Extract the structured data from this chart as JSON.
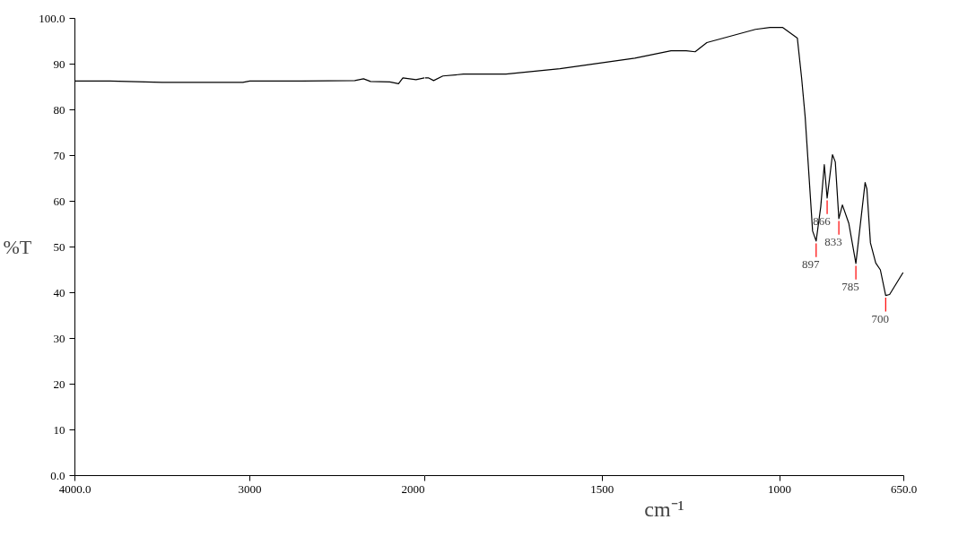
{
  "chart_data": [
    {
      "type": "line",
      "ylabel": "%T",
      "x": [
        4000,
        3800,
        3600,
        3500,
        3300,
        3040,
        3000,
        2700,
        2400,
        2350,
        2310,
        2200,
        2150,
        2125,
        2050,
        2000
      ],
      "series": [
        {
          "color": "#000000",
          "values": [
            86.3,
            86.3,
            86.1,
            86.0,
            86.0,
            86.0,
            86.3,
            86.3,
            86.4,
            86.8,
            86.2,
            86.1,
            85.7,
            87.0,
            86.6,
            87.0
          ]
        }
      ],
      "xlim": [
        4000,
        2000
      ],
      "ylim": [
        0,
        100
      ],
      "xticks": [
        {
          "value": 4000,
          "label": "4000.0"
        },
        3000,
        2000
      ],
      "yticks": [
        {
          "value": 0,
          "label": "0.0"
        },
        10,
        20,
        30,
        40,
        50,
        60,
        70,
        80,
        90,
        {
          "value": 100,
          "label": "100.0"
        }
      ],
      "grid": false,
      "marker": "none",
      "line_style": "solid"
    },
    {
      "type": "line",
      "xlabel": "cm⁻¹",
      "x": [
        2000,
        1990,
        1975,
        1949,
        1891,
        1771,
        1619,
        1408,
        1306,
        1263,
        1238,
        1205,
        1068,
        1027,
        991,
        950,
        938,
        928,
        907,
        897,
        884,
        874,
        866,
        851,
        843,
        833,
        823,
        805,
        785,
        759,
        754,
        744,
        729,
        716,
        701,
        690,
        652
      ],
      "series": [
        {
          "color": "#000000",
          "values": [
            87.0,
            87.0,
            86.4,
            87.4,
            87.8,
            87.8,
            89.0,
            91.3,
            92.9,
            92.9,
            92.7,
            94.7,
            97.6,
            98.0,
            98.0,
            95.7,
            87.0,
            78.5,
            53.5,
            51.3,
            58.8,
            68.0,
            60.7,
            70.2,
            68.6,
            56.2,
            59.2,
            55.2,
            46.4,
            64.1,
            62.7,
            50.9,
            46.5,
            45.0,
            39.4,
            39.6,
            44.4
          ]
        }
      ],
      "xlim": [
        2000,
        650
      ],
      "ylim": [
        0,
        100
      ],
      "xticks": [
        {
          "value": 2000,
          "label": null
        },
        1500,
        1000,
        {
          "value": 650,
          "label": "650.0"
        }
      ],
      "tick_labels": "x",
      "annotations": [
        {
          "text": "897",
          "x": 897,
          "y": 51.3
        },
        {
          "text": "866",
          "x": 866,
          "y": 60.7
        },
        {
          "text": "833",
          "x": 833,
          "y": 56.2
        },
        {
          "text": "785",
          "x": 785,
          "y": 46.4
        },
        {
          "text": "700",
          "x": 701,
          "y": 39.4
        }
      ],
      "grid": false,
      "marker": "none",
      "line_style": "solid"
    }
  ]
}
